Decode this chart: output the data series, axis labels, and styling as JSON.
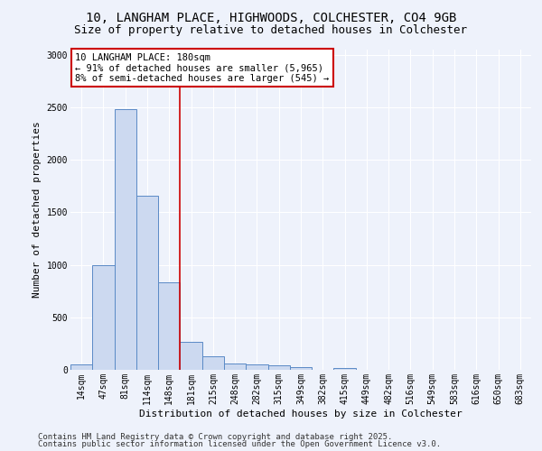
{
  "title_line1": "10, LANGHAM PLACE, HIGHWOODS, COLCHESTER, CO4 9GB",
  "title_line2": "Size of property relative to detached houses in Colchester",
  "xlabel": "Distribution of detached houses by size in Colchester",
  "ylabel": "Number of detached properties",
  "bar_labels": [
    "14sqm",
    "47sqm",
    "81sqm",
    "114sqm",
    "148sqm",
    "181sqm",
    "215sqm",
    "248sqm",
    "282sqm",
    "315sqm",
    "349sqm",
    "382sqm",
    "415sqm",
    "449sqm",
    "482sqm",
    "516sqm",
    "549sqm",
    "583sqm",
    "616sqm",
    "650sqm",
    "683sqm"
  ],
  "bar_values": [
    50,
    1000,
    2480,
    1660,
    830,
    270,
    130,
    60,
    55,
    40,
    25,
    0,
    15,
    0,
    0,
    0,
    0,
    0,
    0,
    0,
    0
  ],
  "bar_color": "#ccd9f0",
  "bar_edge_color": "#5a8ac6",
  "vline_color": "#cc0000",
  "vline_index": 5,
  "annotation_text": "10 LANGHAM PLACE: 180sqm\n← 91% of detached houses are smaller (5,965)\n8% of semi-detached houses are larger (545) →",
  "annotation_box_color": "#ffffff",
  "annotation_box_edge_color": "#cc0000",
  "ylim": [
    0,
    3050
  ],
  "yticks": [
    0,
    500,
    1000,
    1500,
    2000,
    2500,
    3000
  ],
  "background_color": "#eef2fb",
  "plot_background": "#eef2fb",
  "grid_color": "#ffffff",
  "footer_line1": "Contains HM Land Registry data © Crown copyright and database right 2025.",
  "footer_line2": "Contains public sector information licensed under the Open Government Licence v3.0.",
  "title_fontsize": 10,
  "subtitle_fontsize": 9,
  "axis_label_fontsize": 8,
  "tick_fontsize": 7,
  "annotation_fontsize": 7.5,
  "footer_fontsize": 6.5
}
